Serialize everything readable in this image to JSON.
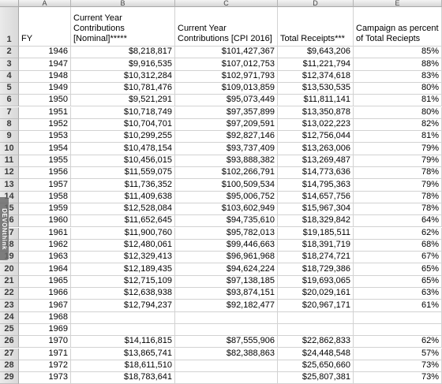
{
  "columns": [
    {
      "letter": "A"
    },
    {
      "letter": "B"
    },
    {
      "letter": "C"
    },
    {
      "letter": "D"
    },
    {
      "letter": "E"
    }
  ],
  "header_row": {
    "row_number": "1",
    "cells": [
      "FY",
      "Current Year Contributions [Nominal]*****",
      "Current Year Contributions [CPI 2016]",
      "Total Receipts***",
      "Campaign as percent of Total Reciepts"
    ]
  },
  "rows": [
    {
      "n": "2",
      "fy": "1946",
      "nominal": "$8,218,817",
      "cpi": "$101,427,367",
      "receipts": "$9,643,206",
      "pct": "85%"
    },
    {
      "n": "3",
      "fy": "1947",
      "nominal": "$9,916,535",
      "cpi": "$107,012,753",
      "receipts": "$11,221,794",
      "pct": "88%"
    },
    {
      "n": "4",
      "fy": "1948",
      "nominal": "$10,312,284",
      "cpi": "$102,971,793",
      "receipts": "$12,374,618",
      "pct": "83%"
    },
    {
      "n": "5",
      "fy": "1949",
      "nominal": "$10,781,476",
      "cpi": "$109,013,859",
      "receipts": "$13,530,535",
      "pct": "80%"
    },
    {
      "n": "6",
      "fy": "1950",
      "nominal": "$9,521,291",
      "cpi": "$95,073,449",
      "receipts": "$11,811,141",
      "pct": "81%"
    },
    {
      "n": "7",
      "fy": "1951",
      "nominal": "$10,718,749",
      "cpi": "$97,357,899",
      "receipts": "$13,350,878",
      "pct": "80%"
    },
    {
      "n": "8",
      "fy": "1952",
      "nominal": "$10,704,701",
      "cpi": "$97,209,591",
      "receipts": "$13,022,223",
      "pct": "82%"
    },
    {
      "n": "9",
      "fy": "1953",
      "nominal": "$10,299,255",
      "cpi": "$92,827,146",
      "receipts": "$12,756,044",
      "pct": "81%"
    },
    {
      "n": "10",
      "fy": "1954",
      "nominal": "$10,478,154",
      "cpi": "$93,737,409",
      "receipts": "$13,263,006",
      "pct": "79%"
    },
    {
      "n": "11",
      "fy": "1955",
      "nominal": "$10,456,015",
      "cpi": "$93,888,382",
      "receipts": "$13,269,487",
      "pct": "79%"
    },
    {
      "n": "12",
      "fy": "1956",
      "nominal": "$11,559,075",
      "cpi": "$102,266,791",
      "receipts": "$14,773,636",
      "pct": "78%"
    },
    {
      "n": "13",
      "fy": "1957",
      "nominal": "$11,736,352",
      "cpi": "$100,509,534",
      "receipts": "$14,795,363",
      "pct": "79%"
    },
    {
      "n": "14",
      "fy": "1958",
      "nominal": "$11,409,638",
      "cpi": "$95,006,752",
      "receipts": "$14,657,756",
      "pct": "78%"
    },
    {
      "n": "15",
      "fy": "1959",
      "nominal": "$12,528,084",
      "cpi": "$103,602,949",
      "receipts": "$15,967,304",
      "pct": "78%"
    },
    {
      "n": "16",
      "fy": "1960",
      "nominal": "$11,652,645",
      "cpi": "$94,735,610",
      "receipts": "$18,329,842",
      "pct": "64%"
    },
    {
      "n": "17",
      "fy": "1961",
      "nominal": "$11,900,760",
      "cpi": "$95,782,013",
      "receipts": "$19,185,511",
      "pct": "62%"
    },
    {
      "n": "18",
      "fy": "1962",
      "nominal": "$12,480,061",
      "cpi": "$99,446,663",
      "receipts": "$18,391,719",
      "pct": "68%"
    },
    {
      "n": "19",
      "fy": "1963",
      "nominal": "$12,329,413",
      "cpi": "$96,961,968",
      "receipts": "$18,274,721",
      "pct": "67%"
    },
    {
      "n": "20",
      "fy": "1964",
      "nominal": "$12,189,435",
      "cpi": "$94,624,224",
      "receipts": "$18,729,386",
      "pct": "65%"
    },
    {
      "n": "21",
      "fy": "1965",
      "nominal": "$12,715,109",
      "cpi": "$97,138,185",
      "receipts": "$19,693,065",
      "pct": "65%"
    },
    {
      "n": "22",
      "fy": "1966",
      "nominal": "$12,638,938",
      "cpi": "$93,874,151",
      "receipts": "$20,029,161",
      "pct": "63%"
    },
    {
      "n": "23",
      "fy": "1967",
      "nominal": "$12,794,237",
      "cpi": "$92,182,477",
      "receipts": "$20,967,171",
      "pct": "61%"
    },
    {
      "n": "24",
      "fy": "1968",
      "nominal": "",
      "cpi": "",
      "receipts": "",
      "pct": ""
    },
    {
      "n": "25",
      "fy": "1969",
      "nominal": "",
      "cpi": "",
      "receipts": "",
      "pct": ""
    },
    {
      "n": "26",
      "fy": "1970",
      "nominal": "$14,116,815",
      "cpi": "$87,555,906",
      "receipts": "$22,862,833",
      "pct": "62%"
    },
    {
      "n": "27",
      "fy": "1971",
      "nominal": "$13,865,741",
      "cpi": "$82,388,863",
      "receipts": "$24,448,548",
      "pct": "57%"
    },
    {
      "n": "28",
      "fy": "1972",
      "nominal": "$18,611,510",
      "cpi": "",
      "receipts": "$25,650,660",
      "pct": "73%"
    },
    {
      "n": "29",
      "fy": "1973",
      "nominal": "$18,783,641",
      "cpi": "",
      "receipts": "$25,807,381",
      "pct": "73%"
    }
  ],
  "side_tab": {
    "label": "DEVONthink"
  }
}
